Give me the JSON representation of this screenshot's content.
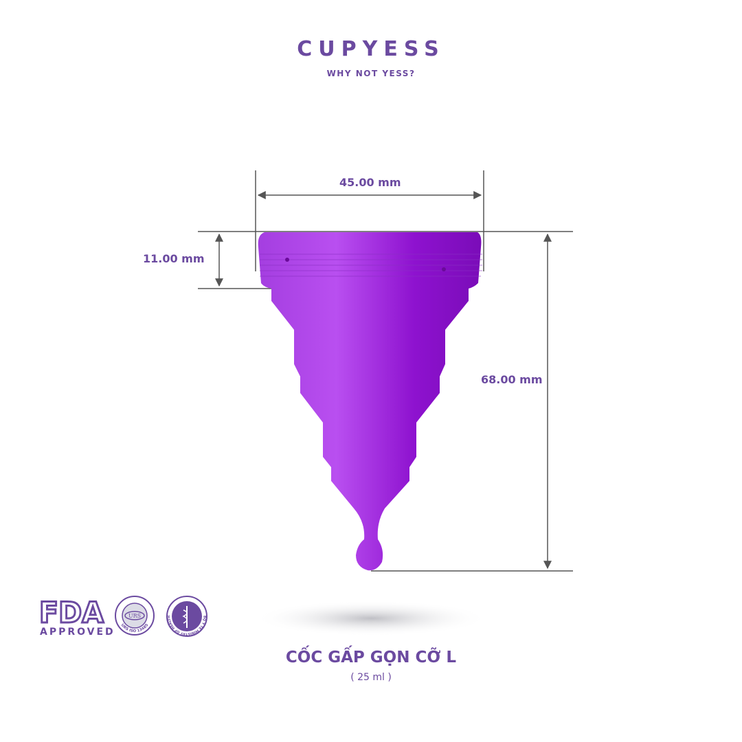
{
  "brand": {
    "name": "CUPYESS",
    "tagline": "WHY NOT YESS?",
    "color": "#6b4aa0"
  },
  "dimensions": {
    "width": "45.00 mm",
    "rim_height": "11.00 mm",
    "total_height": "68.00 mm"
  },
  "product": {
    "title": "CỐC GẤP GỌN CỠ L",
    "volume": "( 25 ml )",
    "cup_color": "#9b1fd6"
  },
  "certifications": [
    {
      "name": "FDA",
      "label": "APPROVED",
      "icon": "fda-logo"
    },
    {
      "name": "URS ISO 13485",
      "icon": "urs-seal"
    },
    {
      "name": "BỘ Y TẾ MINISTRY OF HEALTH",
      "icon": "ministry-of-health-seal"
    }
  ]
}
